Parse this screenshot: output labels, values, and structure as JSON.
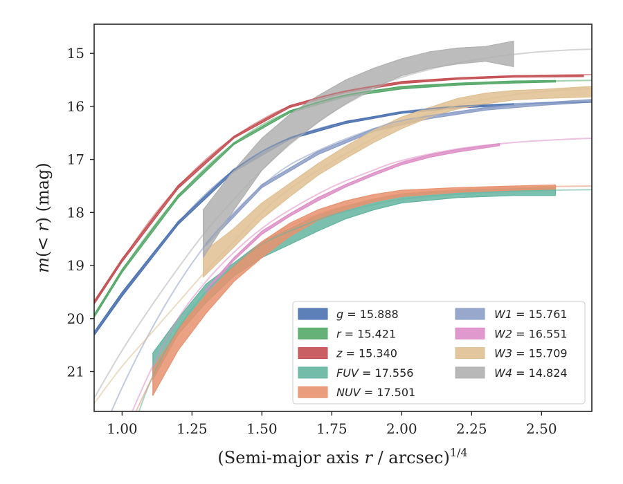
{
  "chart_data": {
    "type": "line",
    "xlabel_main": "(Semi-major axis ",
    "xlabel_var": "r",
    "xlabel_unit": " / arcsec)",
    "xlabel_exp": "1/4",
    "ylabel_pre": "m",
    "ylabel_mid": "(< ",
    "ylabel_var": "r",
    "ylabel_post": ") (mag)",
    "xlim": [
      0.9,
      2.68
    ],
    "ylim": [
      21.75,
      14.45
    ],
    "y_inverted": true,
    "xticks": [
      1.0,
      1.25,
      1.5,
      1.75,
      2.0,
      2.25,
      2.5
    ],
    "xtick_labels": [
      "1.00",
      "1.25",
      "1.50",
      "1.75",
      "2.00",
      "2.25",
      "2.50"
    ],
    "yticks": [
      15,
      16,
      17,
      18,
      19,
      20,
      21
    ],
    "ytick_labels": [
      "15",
      "16",
      "17",
      "18",
      "19",
      "20",
      "21"
    ],
    "legend_position": "lower-right",
    "series": [
      {
        "name": "g",
        "value": "15.888",
        "color": "#4c72b0",
        "model_x": [
          0.9,
          1.0,
          1.1,
          1.2,
          1.3,
          1.4,
          1.5,
          1.6,
          1.75,
          1.9,
          2.0,
          2.2,
          2.4,
          2.55,
          2.68
        ],
        "model_y": [
          20.3,
          19.55,
          18.85,
          18.2,
          17.65,
          17.2,
          16.85,
          16.6,
          16.35,
          16.2,
          16.1,
          16.0,
          15.95,
          15.93,
          15.92
        ],
        "band_x": [
          0.9,
          1.0,
          1.2,
          1.4,
          1.6,
          1.8,
          2.0,
          2.2,
          2.4
        ],
        "band_lo": [
          20.25,
          19.5,
          18.17,
          17.18,
          16.58,
          16.28,
          16.1,
          16.0,
          15.95
        ],
        "band_hi": [
          20.32,
          19.58,
          18.23,
          17.23,
          16.62,
          16.32,
          16.13,
          16.03,
          15.98
        ]
      },
      {
        "name": "r",
        "value": "15.421",
        "color": "#55a868",
        "model_x": [
          0.9,
          1.0,
          1.1,
          1.2,
          1.3,
          1.4,
          1.5,
          1.6,
          1.75,
          1.9,
          2.0,
          2.2,
          2.4,
          2.55,
          2.68
        ],
        "model_y": [
          19.95,
          19.1,
          18.35,
          17.7,
          17.15,
          16.7,
          16.35,
          16.1,
          15.85,
          15.7,
          15.65,
          15.58,
          15.54,
          15.52,
          15.51
        ],
        "band_x": [
          0.9,
          1.0,
          1.2,
          1.4,
          1.6,
          1.8,
          2.0,
          2.2,
          2.4,
          2.55
        ],
        "band_lo": [
          19.92,
          19.07,
          17.67,
          16.68,
          16.08,
          15.78,
          15.62,
          15.56,
          15.52,
          15.51
        ],
        "band_hi": [
          19.98,
          19.13,
          17.73,
          16.72,
          16.12,
          15.82,
          15.67,
          15.6,
          15.56,
          15.54
        ]
      },
      {
        "name": "z",
        "value": "15.340",
        "color": "#c44e52",
        "model_x": [
          0.9,
          1.0,
          1.1,
          1.2,
          1.3,
          1.4,
          1.5,
          1.6,
          1.75,
          1.9,
          2.0,
          2.2,
          2.4,
          2.55,
          2.68
        ],
        "model_y": [
          19.7,
          18.9,
          18.15,
          17.52,
          17.0,
          16.58,
          16.25,
          16.0,
          15.77,
          15.62,
          15.55,
          15.47,
          15.43,
          15.41,
          15.4
        ],
        "band_x": [
          0.9,
          1.0,
          1.2,
          1.4,
          1.6,
          1.8,
          2.0,
          2.2,
          2.4,
          2.65
        ],
        "band_lo": [
          19.67,
          18.87,
          17.49,
          16.56,
          15.98,
          15.7,
          15.53,
          15.46,
          15.42,
          15.41
        ],
        "band_hi": [
          19.73,
          18.93,
          17.55,
          16.6,
          16.02,
          15.74,
          15.57,
          15.49,
          15.45,
          15.44
        ]
      },
      {
        "name": "FUV",
        "value": "17.556",
        "color": "#64b5a0",
        "model_x": [
          0.9,
          1.0,
          1.1,
          1.2,
          1.3,
          1.4,
          1.5,
          1.6,
          1.75,
          1.9,
          2.0,
          2.2,
          2.4,
          2.55,
          2.68
        ],
        "model_y": [
          23.5,
          22.6,
          21.2,
          20.2,
          19.5,
          19.0,
          18.6,
          18.35,
          18.05,
          17.85,
          17.75,
          17.65,
          17.6,
          17.58,
          17.57
        ],
        "band_x": [
          1.11,
          1.2,
          1.3,
          1.4,
          1.5,
          1.6,
          1.7,
          1.8,
          1.9,
          2.0,
          2.2,
          2.4,
          2.55
        ],
        "band_lo": [
          20.65,
          20.0,
          19.35,
          18.95,
          18.55,
          18.3,
          18.05,
          17.88,
          17.75,
          17.65,
          17.58,
          17.55,
          17.53
        ],
        "band_hi": [
          21.15,
          20.3,
          19.7,
          19.2,
          18.85,
          18.6,
          18.35,
          18.12,
          17.95,
          17.82,
          17.72,
          17.68,
          17.68
        ]
      },
      {
        "name": "NUV",
        "value": "17.501",
        "color": "#e8926f",
        "model_x": [
          0.9,
          1.0,
          1.1,
          1.2,
          1.3,
          1.4,
          1.5,
          1.6,
          1.75,
          1.9,
          2.0,
          2.2,
          2.4,
          2.55,
          2.68
        ],
        "model_y": [
          23.2,
          22.3,
          21.2,
          20.3,
          19.6,
          19.05,
          18.6,
          18.25,
          17.95,
          17.75,
          17.65,
          17.57,
          17.53,
          17.51,
          17.5
        ],
        "band_x": [
          1.11,
          1.2,
          1.3,
          1.4,
          1.5,
          1.6,
          1.7,
          1.8,
          1.9,
          2.0,
          2.2,
          2.4,
          2.55
        ],
        "band_lo": [
          20.95,
          20.2,
          19.55,
          19.0,
          18.55,
          18.2,
          17.95,
          17.78,
          17.66,
          17.58,
          17.53,
          17.5,
          17.48
        ],
        "band_hi": [
          21.45,
          20.6,
          19.9,
          19.3,
          18.85,
          18.45,
          18.15,
          17.95,
          17.8,
          17.7,
          17.62,
          17.58,
          17.56
        ]
      },
      {
        "name": "W1",
        "value": "15.761",
        "color": "#8c9ec7",
        "model_x": [
          0.9,
          1.0,
          1.1,
          1.2,
          1.3,
          1.4,
          1.5,
          1.6,
          1.75,
          1.9,
          2.0,
          2.2,
          2.4,
          2.55,
          2.68
        ],
        "model_y": [
          22.5,
          21.3,
          20.25,
          19.35,
          18.6,
          18.0,
          17.5,
          17.1,
          16.72,
          16.42,
          16.27,
          16.1,
          15.98,
          15.93,
          15.9
        ],
        "band_x": [
          1.3,
          1.5,
          1.7,
          1.9,
          2.1,
          2.3,
          2.5,
          2.68
        ],
        "band_lo": [
          18.57,
          17.47,
          16.85,
          16.42,
          16.18,
          16.02,
          15.93,
          15.87
        ],
        "band_hi": [
          18.63,
          17.53,
          16.91,
          16.47,
          16.23,
          16.07,
          15.98,
          15.92
        ]
      },
      {
        "name": "W2",
        "value": "16.551",
        "color": "#dd8ec6",
        "model_x": [
          0.9,
          1.0,
          1.1,
          1.2,
          1.3,
          1.4,
          1.5,
          1.6,
          1.75,
          1.9,
          2.0,
          2.2,
          2.4,
          2.55,
          2.68
        ],
        "model_y": [
          23.5,
          22.2,
          21.0,
          20.0,
          19.3,
          18.75,
          18.3,
          17.95,
          17.52,
          17.2,
          17.02,
          16.8,
          16.68,
          16.63,
          16.6
        ],
        "band_x": [
          1.3,
          1.4,
          1.5,
          1.6,
          1.7,
          1.8,
          1.9,
          2.0,
          2.1,
          2.2,
          2.35
        ],
        "band_lo": [
          19.45,
          18.85,
          18.35,
          18.02,
          17.72,
          17.47,
          17.25,
          17.05,
          16.91,
          16.81,
          16.7
        ],
        "band_hi": [
          19.52,
          18.9,
          18.41,
          18.07,
          17.78,
          17.52,
          17.3,
          17.1,
          16.96,
          16.86,
          16.74
        ]
      },
      {
        "name": "W3",
        "value": "15.709",
        "color": "#dfc093",
        "model_x": [
          0.9,
          1.0,
          1.1,
          1.2,
          1.3,
          1.4,
          1.5,
          1.6,
          1.75,
          1.9,
          2.0,
          2.2,
          2.4,
          2.55,
          2.68
        ],
        "model_y": [
          21.6,
          20.9,
          20.3,
          19.7,
          19.1,
          18.55,
          18.0,
          17.55,
          17.05,
          16.6,
          16.32,
          15.98,
          15.78,
          15.7,
          15.66
        ],
        "band_x": [
          1.29,
          1.4,
          1.5,
          1.6,
          1.7,
          1.8,
          1.9,
          2.0,
          2.1,
          2.2,
          2.3,
          2.4,
          2.5,
          2.68
        ],
        "band_lo": [
          18.75,
          18.3,
          17.82,
          17.45,
          17.08,
          16.75,
          16.45,
          16.2,
          16.02,
          15.85,
          15.75,
          15.7,
          15.68,
          15.62
        ],
        "band_hi": [
          19.22,
          18.65,
          18.12,
          17.7,
          17.3,
          16.98,
          16.68,
          16.42,
          16.2,
          16.05,
          15.95,
          15.88,
          15.85,
          15.82
        ]
      },
      {
        "name": "W4",
        "value": "14.824",
        "color": "#b0b0b0",
        "model_x": [
          0.9,
          1.0,
          1.1,
          1.2,
          1.3,
          1.4,
          1.5,
          1.6,
          1.75,
          1.9,
          2.0,
          2.2,
          2.4,
          2.55,
          2.68
        ],
        "model_y": [
          21.5,
          20.6,
          19.8,
          19.05,
          18.35,
          17.75,
          17.2,
          16.72,
          16.12,
          15.68,
          15.45,
          15.18,
          15.02,
          14.95,
          14.92
        ],
        "band_x": [
          1.29,
          1.4,
          1.5,
          1.6,
          1.7,
          1.8,
          1.9,
          2.0,
          2.1,
          2.2,
          2.3,
          2.4
        ],
        "band_lo": [
          17.95,
          17.2,
          16.6,
          16.15,
          15.8,
          15.5,
          15.28,
          15.1,
          14.97,
          14.9,
          14.87,
          14.77
        ],
        "band_hi": [
          18.85,
          17.95,
          17.2,
          16.7,
          16.3,
          15.95,
          15.65,
          15.42,
          15.28,
          15.2,
          15.15,
          15.25
        ]
      }
    ]
  }
}
